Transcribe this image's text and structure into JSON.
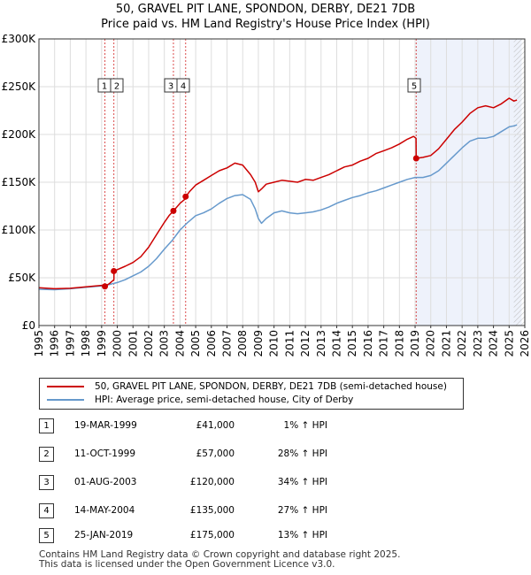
{
  "title_line1": "50, GRAVEL PIT LANE, SPONDON, DERBY, DE21 7DB",
  "title_line2": "Price paid vs. HM Land Registry's House Price Index (HPI)",
  "colors": {
    "price": "#cc0000",
    "hpi": "#6699cc",
    "shade": "#eef2fb",
    "grid": "#dddddd",
    "vline": "#cc0000"
  },
  "chart_data": {
    "type": "line",
    "title": "50, GRAVEL PIT LANE, SPONDON, DERBY, DE21 7DB",
    "subtitle": "Price paid vs. HM Land Registry's House Price Index (HPI)",
    "xlabel": "",
    "ylabel": "",
    "xlim": [
      1995,
      2026
    ],
    "ylim": [
      0,
      300000
    ],
    "y_ticks": [
      {
        "value": 0,
        "label": "£0"
      },
      {
        "value": 50000,
        "label": "£50K"
      },
      {
        "value": 100000,
        "label": "£100K"
      },
      {
        "value": 150000,
        "label": "£150K"
      },
      {
        "value": 200000,
        "label": "£200K"
      },
      {
        "value": 250000,
        "label": "£250K"
      },
      {
        "value": 300000,
        "label": "£300K"
      }
    ],
    "x_ticks": [
      "1995",
      "1996",
      "1997",
      "1998",
      "1999",
      "2000",
      "2001",
      "2002",
      "2003",
      "2004",
      "2005",
      "2006",
      "2007",
      "2008",
      "2009",
      "2010",
      "2011",
      "2012",
      "2013",
      "2014",
      "2015",
      "2016",
      "2017",
      "2018",
      "2019",
      "2020",
      "2021",
      "2022",
      "2023",
      "2024",
      "2025",
      "2026"
    ],
    "grid": true,
    "shaded_region": [
      2019.07,
      2025.8
    ],
    "hatched_from": 2025.3,
    "series": [
      {
        "name": "50, GRAVEL PIT LANE, SPONDON, DERBY, DE21 7DB (semi-detached house)",
        "color": "#cc0000",
        "x": [
          1995.0,
          1996.0,
          1997.0,
          1998.0,
          1999.0,
          1999.21,
          1999.22,
          1999.5,
          1999.78,
          1999.79,
          2000.5,
          2001.0,
          2001.5,
          2002.0,
          2002.5,
          2003.0,
          2003.3,
          2003.58,
          2003.59,
          2004.0,
          2004.36,
          2004.37,
          2004.6,
          2005.0,
          2005.5,
          2006.0,
          2006.5,
          2007.0,
          2007.5,
          2008.0,
          2008.5,
          2008.8,
          2009.0,
          2009.2,
          2009.5,
          2010.0,
          2010.5,
          2011.0,
          2011.5,
          2012.0,
          2012.5,
          2013.0,
          2013.5,
          2014.0,
          2014.5,
          2015.0,
          2015.5,
          2016.0,
          2016.5,
          2017.0,
          2017.5,
          2018.0,
          2018.5,
          2018.9,
          2019.06,
          2019.07,
          2019.5,
          2020.0,
          2020.5,
          2021.0,
          2021.5,
          2022.0,
          2022.5,
          2023.0,
          2023.5,
          2024.0,
          2024.5,
          2025.0,
          2025.3,
          2025.5
        ],
        "y": [
          39500,
          38500,
          39000,
          40500,
          42000,
          42500,
          41000,
          44000,
          48000,
          57000,
          62000,
          66000,
          72000,
          82000,
          95000,
          108000,
          115000,
          120000,
          120000,
          128000,
          133000,
          135000,
          140000,
          147000,
          152000,
          157000,
          162000,
          165000,
          170000,
          168000,
          158000,
          150000,
          140000,
          143000,
          148000,
          150000,
          152000,
          151000,
          150000,
          153000,
          152000,
          155000,
          158000,
          162000,
          166000,
          168000,
          172000,
          175000,
          180000,
          183000,
          186000,
          190000,
          195000,
          198000,
          196000,
          175000,
          176000,
          178000,
          185000,
          195000,
          205000,
          213000,
          222000,
          228000,
          230000,
          228000,
          232000,
          238000,
          235000,
          236000
        ]
      },
      {
        "name": "HPI: Average price, semi-detached house, City of Derby",
        "color": "#6699cc",
        "x": [
          1995.0,
          1996.0,
          1997.0,
          1998.0,
          1999.0,
          1999.5,
          2000.0,
          2000.5,
          2001.0,
          2001.5,
          2002.0,
          2002.5,
          2003.0,
          2003.5,
          2004.0,
          2004.5,
          2005.0,
          2005.5,
          2006.0,
          2006.5,
          2007.0,
          2007.5,
          2008.0,
          2008.5,
          2008.8,
          2009.0,
          2009.2,
          2009.5,
          2010.0,
          2010.5,
          2011.0,
          2011.5,
          2012.0,
          2012.5,
          2013.0,
          2013.5,
          2014.0,
          2014.5,
          2015.0,
          2015.5,
          2016.0,
          2016.5,
          2017.0,
          2017.5,
          2018.0,
          2018.5,
          2019.0,
          2019.5,
          2020.0,
          2020.5,
          2021.0,
          2021.5,
          2022.0,
          2022.5,
          2023.0,
          2023.5,
          2024.0,
          2024.5,
          2025.0,
          2025.3,
          2025.5
        ],
        "y": [
          38000,
          37500,
          38500,
          40000,
          41500,
          43000,
          45000,
          48000,
          52000,
          56000,
          62000,
          70000,
          80000,
          89000,
          100000,
          108000,
          115000,
          118000,
          122000,
          128000,
          133000,
          136000,
          137000,
          132000,
          122000,
          112000,
          107000,
          112000,
          118000,
          120000,
          118000,
          117000,
          118000,
          119000,
          121000,
          124000,
          128000,
          131000,
          134000,
          136000,
          139000,
          141000,
          144000,
          147000,
          150000,
          153000,
          155000,
          155000,
          157000,
          162000,
          170000,
          178000,
          186000,
          193000,
          196000,
          196000,
          198000,
          203000,
          208000,
          209000,
          210000
        ]
      }
    ],
    "sales": [
      {
        "label": "1",
        "x": 1999.21,
        "y": 41000
      },
      {
        "label": "2",
        "x": 1999.78,
        "y": 57000
      },
      {
        "label": "3",
        "x": 2003.58,
        "y": 120000
      },
      {
        "label": "4",
        "x": 2004.36,
        "y": 135000
      },
      {
        "label": "5",
        "x": 2019.07,
        "y": 175000
      }
    ]
  },
  "legend": {
    "price_label": "50, GRAVEL PIT LANE, SPONDON, DERBY, DE21 7DB (semi-detached house)",
    "hpi_label": "HPI: Average price, semi-detached house, City of Derby"
  },
  "sales_table": [
    {
      "num": "1",
      "date": "19-MAR-1999",
      "price": "£41,000",
      "hpi": "1% ↑ HPI"
    },
    {
      "num": "2",
      "date": "11-OCT-1999",
      "price": "£57,000",
      "hpi": "28% ↑ HPI"
    },
    {
      "num": "3",
      "date": "01-AUG-2003",
      "price": "£120,000",
      "hpi": "34% ↑ HPI"
    },
    {
      "num": "4",
      "date": "14-MAY-2004",
      "price": "£135,000",
      "hpi": "27% ↑ HPI"
    },
    {
      "num": "5",
      "date": "25-JAN-2019",
      "price": "£175,000",
      "hpi": "13% ↑ HPI"
    }
  ],
  "footer": {
    "line1": "Contains HM Land Registry data © Crown copyright and database right 2025.",
    "line2": "This data is licensed under the Open Government Licence v3.0."
  }
}
